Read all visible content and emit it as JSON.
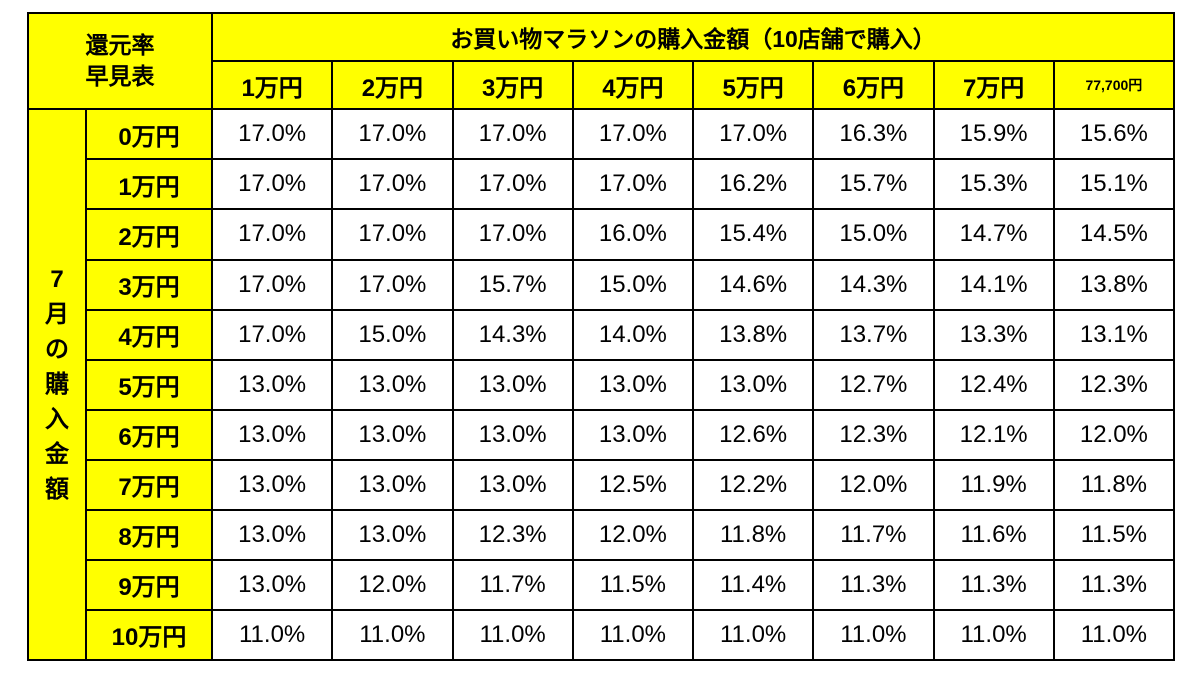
{
  "corner_line1": "還元率",
  "corner_line2": "早見表",
  "main_header": "お買い物マラソンの購入金額（10店舗で購入）",
  "columns": [
    "1万円",
    "2万円",
    "3万円",
    "4万円",
    "5万円",
    "6万円",
    "7万円",
    "77,700円"
  ],
  "side_label_chars": [
    "7",
    "月",
    "の",
    "購",
    "入",
    "金",
    "額"
  ],
  "rows": [
    {
      "label": "0万円",
      "values": [
        "17.0%",
        "17.0%",
        "17.0%",
        "17.0%",
        "17.0%",
        "16.3%",
        "15.9%",
        "15.6%"
      ]
    },
    {
      "label": "1万円",
      "values": [
        "17.0%",
        "17.0%",
        "17.0%",
        "17.0%",
        "16.2%",
        "15.7%",
        "15.3%",
        "15.1%"
      ]
    },
    {
      "label": "2万円",
      "values": [
        "17.0%",
        "17.0%",
        "17.0%",
        "16.0%",
        "15.4%",
        "15.0%",
        "14.7%",
        "14.5%"
      ]
    },
    {
      "label": "3万円",
      "values": [
        "17.0%",
        "17.0%",
        "15.7%",
        "15.0%",
        "14.6%",
        "14.3%",
        "14.1%",
        "13.8%"
      ]
    },
    {
      "label": "4万円",
      "values": [
        "17.0%",
        "15.0%",
        "14.3%",
        "14.0%",
        "13.8%",
        "13.7%",
        "13.3%",
        "13.1%"
      ]
    },
    {
      "label": "5万円",
      "values": [
        "13.0%",
        "13.0%",
        "13.0%",
        "13.0%",
        "13.0%",
        "12.7%",
        "12.4%",
        "12.3%"
      ]
    },
    {
      "label": "6万円",
      "values": [
        "13.0%",
        "13.0%",
        "13.0%",
        "13.0%",
        "12.6%",
        "12.3%",
        "12.1%",
        "12.0%"
      ]
    },
    {
      "label": "7万円",
      "values": [
        "13.0%",
        "13.0%",
        "13.0%",
        "12.5%",
        "12.2%",
        "12.0%",
        "11.9%",
        "11.8%"
      ]
    },
    {
      "label": "8万円",
      "values": [
        "13.0%",
        "13.0%",
        "12.3%",
        "12.0%",
        "11.8%",
        "11.7%",
        "11.6%",
        "11.5%"
      ]
    },
    {
      "label": "9万円",
      "values": [
        "13.0%",
        "12.0%",
        "11.7%",
        "11.5%",
        "11.4%",
        "11.3%",
        "11.3%",
        "11.3%"
      ]
    },
    {
      "label": "10万円",
      "values": [
        "11.0%",
        "11.0%",
        "11.0%",
        "11.0%",
        "11.0%",
        "11.0%",
        "11.0%",
        "11.0%"
      ]
    }
  ],
  "colors": {
    "header_bg": "#ffff00",
    "cell_bg": "#ffffff",
    "border": "#000000"
  }
}
